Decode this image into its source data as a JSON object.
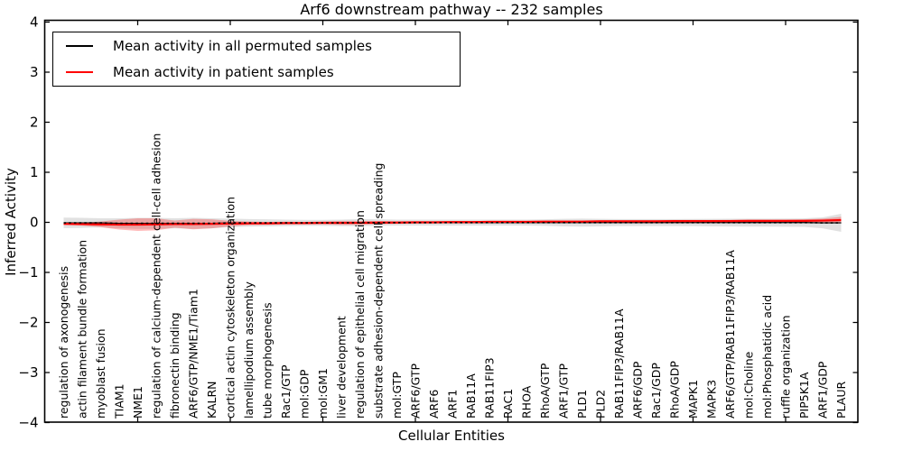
{
  "figure": {
    "background": "#ffffff",
    "frame_color": "#000000"
  },
  "chart_data": {
    "type": "line",
    "title": "Arf6 downstream pathway -- 232 samples",
    "xlabel": "Cellular Entities",
    "ylabel": "Inferred Activity",
    "ylim": [
      -4,
      4
    ],
    "yticks": [
      4,
      3,
      2,
      1,
      0,
      -1,
      -2,
      -3,
      -4
    ],
    "xtick_indices": [
      4,
      9,
      14,
      19,
      24,
      29,
      34,
      39
    ],
    "grid": false,
    "legend_position": "upper left",
    "x_tick_label_rotation": 90,
    "categories": [
      "regulation of axonogenesis",
      "actin filament bundle formation",
      "myoblast fusion",
      "TIAM1",
      "NME1",
      "regulation of calcium-dependent cell-cell adhesion",
      "fibronectin binding",
      "ARF6/GTP/NME1/Tiam1",
      "KALRN",
      "cortical actin cytoskeleton organization",
      "lamellipodium assembly",
      "tube morphogenesis",
      "Rac1/GTP",
      "mol:GDP",
      "mol:GM1",
      "liver development",
      "regulation of epithelial cell migration",
      "substrate adhesion-dependent cell spreading",
      "mol:GTP",
      "ARF6/GTP",
      "ARF6",
      "ARF1",
      "RAB11A",
      "RAB11FIP3",
      "RAC1",
      "RHOA",
      "RhoA/GTP",
      "ARF1/GTP",
      "PLD1",
      "PLD2",
      "RAB11FIP3/RAB11A",
      "ARF6/GDP",
      "Rac1/GDP",
      "RhoA/GDP",
      "MAPK1",
      "MAPK3",
      "ARF6/GTP/RAB11FIP3/RAB11A",
      "mol:Choline",
      "mol:Phosphatidic acid",
      "ruffle organization",
      "PIP5K1A",
      "ARF1/GDP",
      "PLAUR"
    ],
    "series": [
      {
        "name": "Mean activity in all permuted samples",
        "color": "#000000",
        "band_color": "#c8c8c8",
        "band_opacity": 0.55,
        "values": [
          -0.01,
          -0.01,
          -0.01,
          -0.02,
          -0.02,
          -0.02,
          -0.02,
          -0.02,
          -0.02,
          -0.01,
          -0.01,
          -0.01,
          -0.01,
          -0.01,
          -0.01,
          -0.01,
          -0.005,
          -0.005,
          -0.005,
          -0.005,
          -0.005,
          -0.005,
          -0.005,
          -0.005,
          -0.005,
          -0.005,
          -0.005,
          -0.005,
          -0.005,
          -0.005,
          -0.005,
          -0.005,
          -0.005,
          -0.005,
          -0.005,
          -0.005,
          -0.005,
          -0.005,
          -0.005,
          -0.005,
          -0.005,
          -0.01,
          -0.01
        ],
        "std": [
          0.105,
          0.1,
          0.09,
          0.1,
          0.11,
          0.11,
          0.1,
          0.11,
          0.1,
          0.085,
          0.075,
          0.07,
          0.065,
          0.06,
          0.06,
          0.065,
          0.07,
          0.065,
          0.06,
          0.06,
          0.06,
          0.06,
          0.06,
          0.06,
          0.06,
          0.06,
          0.065,
          0.075,
          0.08,
          0.075,
          0.07,
          0.07,
          0.07,
          0.07,
          0.072,
          0.075,
          0.078,
          0.08,
          0.08,
          0.082,
          0.085,
          0.11,
          0.18
        ]
      },
      {
        "name": "Mean activity in patient samples",
        "color": "#ff0000",
        "band_color": "#ff0000",
        "band_opacity": 0.27,
        "values": [
          -0.03,
          -0.035,
          -0.04,
          -0.045,
          -0.045,
          -0.04,
          -0.035,
          -0.035,
          -0.03,
          -0.025,
          -0.02,
          -0.02,
          -0.015,
          -0.015,
          -0.01,
          -0.01,
          -0.01,
          -0.005,
          -0.005,
          0,
          0,
          0.005,
          0.005,
          0.01,
          0.01,
          0.01,
          0.015,
          0.015,
          0.015,
          0.02,
          0.02,
          0.02,
          0.02,
          0.025,
          0.025,
          0.025,
          0.025,
          0.03,
          0.03,
          0.03,
          0.03,
          0.035,
          0.045
        ],
        "std": [
          0.02,
          0.03,
          0.055,
          0.1,
          0.125,
          0.12,
          0.07,
          0.105,
          0.09,
          0.055,
          0.035,
          0.03,
          0.028,
          0.025,
          0.03,
          0.04,
          0.04,
          0.03,
          0.025,
          0.022,
          0.02,
          0.02,
          0.02,
          0.02,
          0.02,
          0.02,
          0.02,
          0.02,
          0.022,
          0.022,
          0.022,
          0.022,
          0.022,
          0.022,
          0.022,
          0.022,
          0.025,
          0.025,
          0.025,
          0.025,
          0.03,
          0.04,
          0.065
        ]
      }
    ]
  }
}
